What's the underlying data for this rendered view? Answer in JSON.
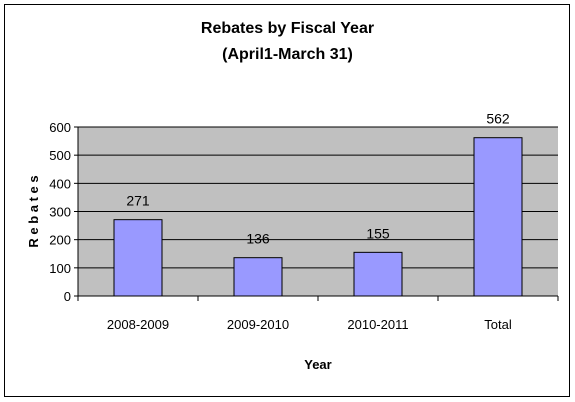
{
  "chart_data": {
    "type": "bar",
    "title": "Rebates by Fiscal Year",
    "subtitle": "(April1-March 31)",
    "xlabel": "Year",
    "ylabel": "R e b a t e s",
    "categories": [
      "2008-2009",
      "2009-2010",
      "2010-2011",
      "Total"
    ],
    "values": [
      271,
      136,
      155,
      562
    ],
    "ylim": [
      0,
      600
    ],
    "yticks": [
      0,
      100,
      200,
      300,
      400,
      500,
      600
    ],
    "grid": true,
    "legend": "none",
    "colors": {
      "plot_background": "#c0c0c0",
      "bar_fill": "#9999ff",
      "bar_stroke": "#000000",
      "gridline": "#000000"
    }
  }
}
